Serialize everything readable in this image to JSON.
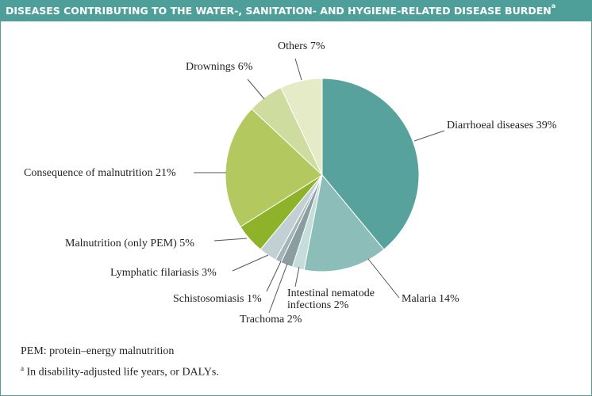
{
  "header": {
    "title": "DISEASES CONTRIBUTING TO THE WATER-, SANITATION- AND HYGIENE-RELATED DISEASE BURDEN",
    "title_sup": "a"
  },
  "footnotes": {
    "pem": "PEM: protein–energy malnutrition",
    "daly_marker": "a",
    "daly": "In disability-adjusted life years, or DALYs."
  },
  "colors": {
    "frame": "#4e9f9a",
    "title_text": "#ffffff",
    "leader": "#555555"
  },
  "chart_data": {
    "type": "pie",
    "start_angle_deg": 0,
    "direction": "clockwise",
    "slices": [
      {
        "label": "Diarrhoeal diseases 39%",
        "value": 39,
        "color": "#58a29e"
      },
      {
        "label": "Malaria 14%",
        "value": 14,
        "color": "#8dbdb8"
      },
      {
        "label": "Intestinal nematode infections 2%",
        "lines": [
          "Intestinal nematode",
          "infections 2%"
        ],
        "value": 2,
        "color": "#c6dedb"
      },
      {
        "label": "Trachoma 2%",
        "value": 2,
        "color": "#8a9da1"
      },
      {
        "label": "Schistosomiasis 1%",
        "value": 1,
        "color": "#a4b5b9"
      },
      {
        "label": "Lymphatic filariasis 3%",
        "value": 3,
        "color": "#c3d0d3"
      },
      {
        "label": "Malnutrition (only PEM) 5%",
        "value": 5,
        "color": "#8eb22a"
      },
      {
        "label": "Consequence of malnutrition 21%",
        "value": 21,
        "color": "#b3c95f"
      },
      {
        "label": "Drownings 6%",
        "value": 6,
        "color": "#cfdc9f"
      },
      {
        "label": "Others 7%",
        "value": 7,
        "color": "#e5ebc6"
      }
    ]
  }
}
